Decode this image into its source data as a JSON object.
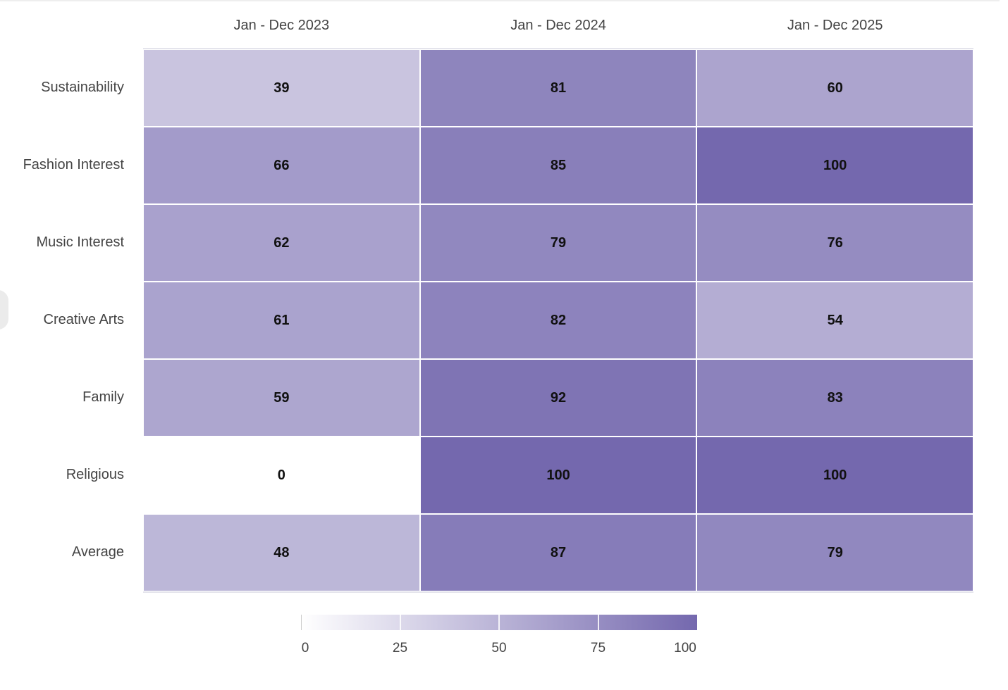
{
  "chart_data": {
    "type": "heatmap",
    "columns": [
      "Jan - Dec 2023",
      "Jan - Dec 2024",
      "Jan - Dec 2025"
    ],
    "rows": [
      "Sustainability",
      "Fashion Interest",
      "Music Interest",
      "Creative Arts",
      "Family",
      "Religious",
      "Average"
    ],
    "values": [
      [
        39,
        81,
        60
      ],
      [
        66,
        85,
        100
      ],
      [
        62,
        79,
        76
      ],
      [
        61,
        82,
        54
      ],
      [
        59,
        92,
        83
      ],
      [
        0,
        100,
        100
      ],
      [
        48,
        87,
        79
      ]
    ],
    "color_scale": {
      "min": 0,
      "max": 100,
      "low_color": "#ffffff",
      "high_color": "#7468ae"
    },
    "legend": {
      "ticks": [
        "0",
        "25",
        "50",
        "75",
        "100"
      ],
      "tick_values": [
        0,
        25,
        50,
        75,
        100
      ],
      "placement": "bottom"
    }
  }
}
